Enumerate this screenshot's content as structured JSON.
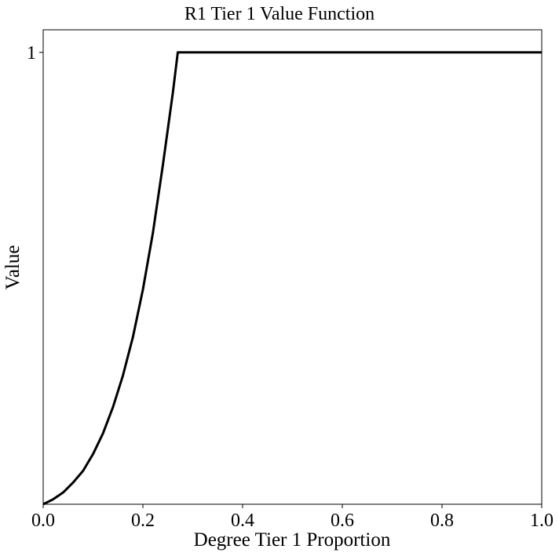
{
  "chart_data": {
    "type": "line",
    "title": "R1 Tier 1 Value Function",
    "xlabel": "Degree Tier 1 Proportion",
    "ylabel": "Value",
    "xlim": [
      0.0,
      1.0
    ],
    "ylim": [
      0.0,
      1.05
    ],
    "x_ticks": [
      0.0,
      0.2,
      0.4,
      0.6,
      0.8,
      1.0
    ],
    "x_tick_labels": [
      "0.0",
      "0.2",
      "0.4",
      "0.6",
      "0.8",
      "1.0"
    ],
    "y_ticks": [
      1
    ],
    "y_tick_labels": [
      "1"
    ],
    "grid": false,
    "series": [
      {
        "color": "#000000",
        "x": [
          0.0,
          0.02,
          0.04,
          0.06,
          0.08,
          0.1,
          0.12,
          0.14,
          0.16,
          0.18,
          0.2,
          0.22,
          0.24,
          0.26,
          0.27,
          0.3,
          0.4,
          0.5,
          0.6,
          0.7,
          0.8,
          0.9,
          1.0
        ],
        "y": [
          0.0,
          0.011,
          0.026,
          0.048,
          0.074,
          0.111,
          0.157,
          0.215,
          0.285,
          0.37,
          0.475,
          0.6,
          0.75,
          0.91,
          1.0,
          1.0,
          1.0,
          1.0,
          1.0,
          1.0,
          1.0,
          1.0,
          1.0
        ]
      }
    ]
  }
}
